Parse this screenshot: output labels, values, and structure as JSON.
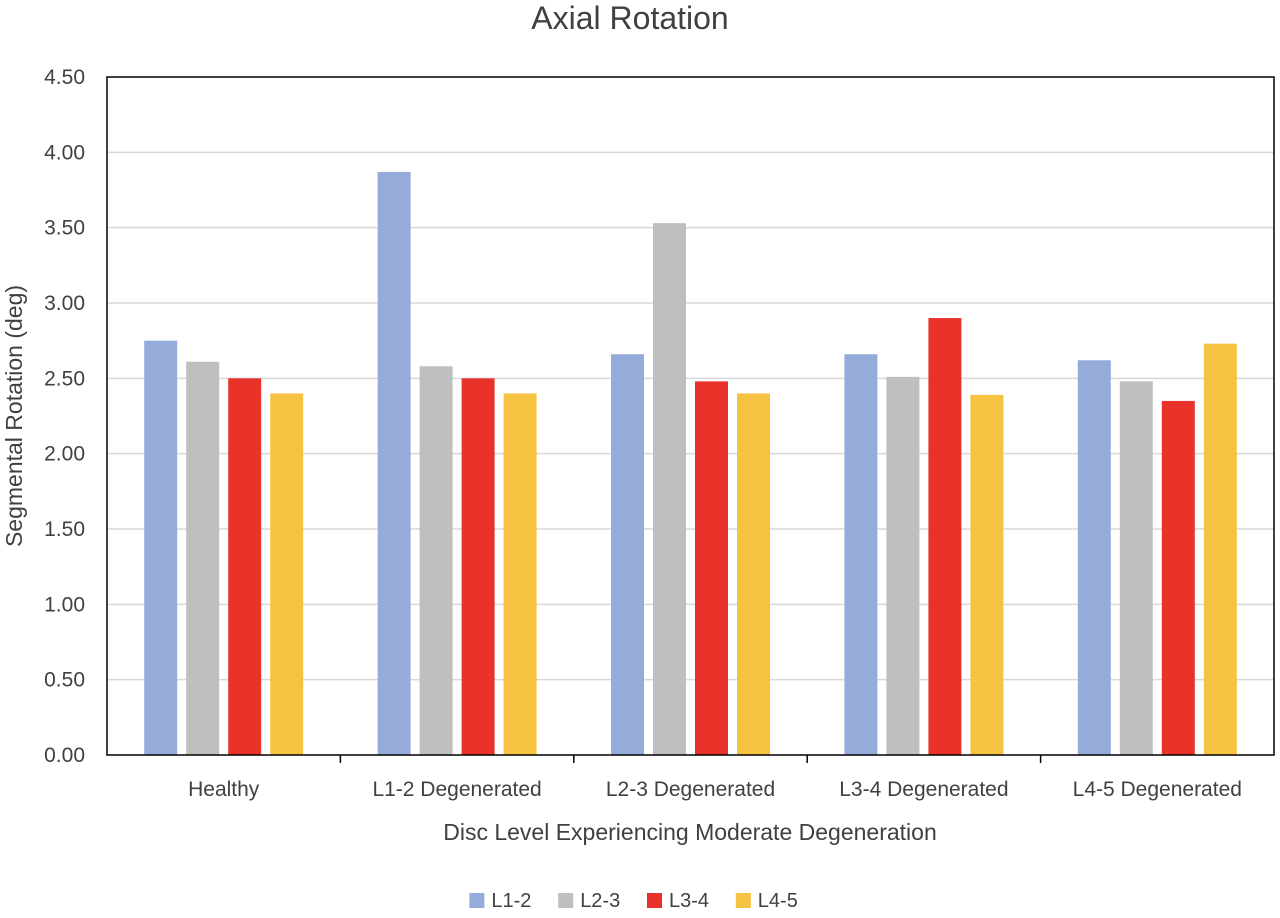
{
  "chart_data": {
    "type": "bar",
    "title": "Axial Rotation",
    "xlabel": "Disc Level Experiencing Moderate Degeneration",
    "ylabel": "Segmental Rotation (deg)",
    "ylim": [
      0,
      4.5
    ],
    "yticks": [
      "0.00",
      "0.50",
      "1.00",
      "1.50",
      "2.00",
      "2.50",
      "3.00",
      "3.50",
      "4.00",
      "4.50"
    ],
    "grid": true,
    "legend_position": "bottom",
    "categories": [
      "Healthy",
      "L1-2 Degenerated",
      "L2-3 Degenerated",
      "L3-4 Degenerated",
      "L4-5 Degenerated"
    ],
    "series": [
      {
        "name": "L1-2",
        "color": "#95acdb",
        "values": [
          2.75,
          3.87,
          2.66,
          2.66,
          2.62
        ]
      },
      {
        "name": "L2-3",
        "color": "#bfbfbf",
        "values": [
          2.61,
          2.58,
          3.53,
          2.51,
          2.48
        ]
      },
      {
        "name": "L3-4",
        "color": "#e8322a",
        "values": [
          2.5,
          2.5,
          2.48,
          2.9,
          2.35
        ]
      },
      {
        "name": "L4-5",
        "color": "#f5c242",
        "values": [
          2.4,
          2.4,
          2.4,
          2.39,
          2.73
        ]
      }
    ]
  }
}
